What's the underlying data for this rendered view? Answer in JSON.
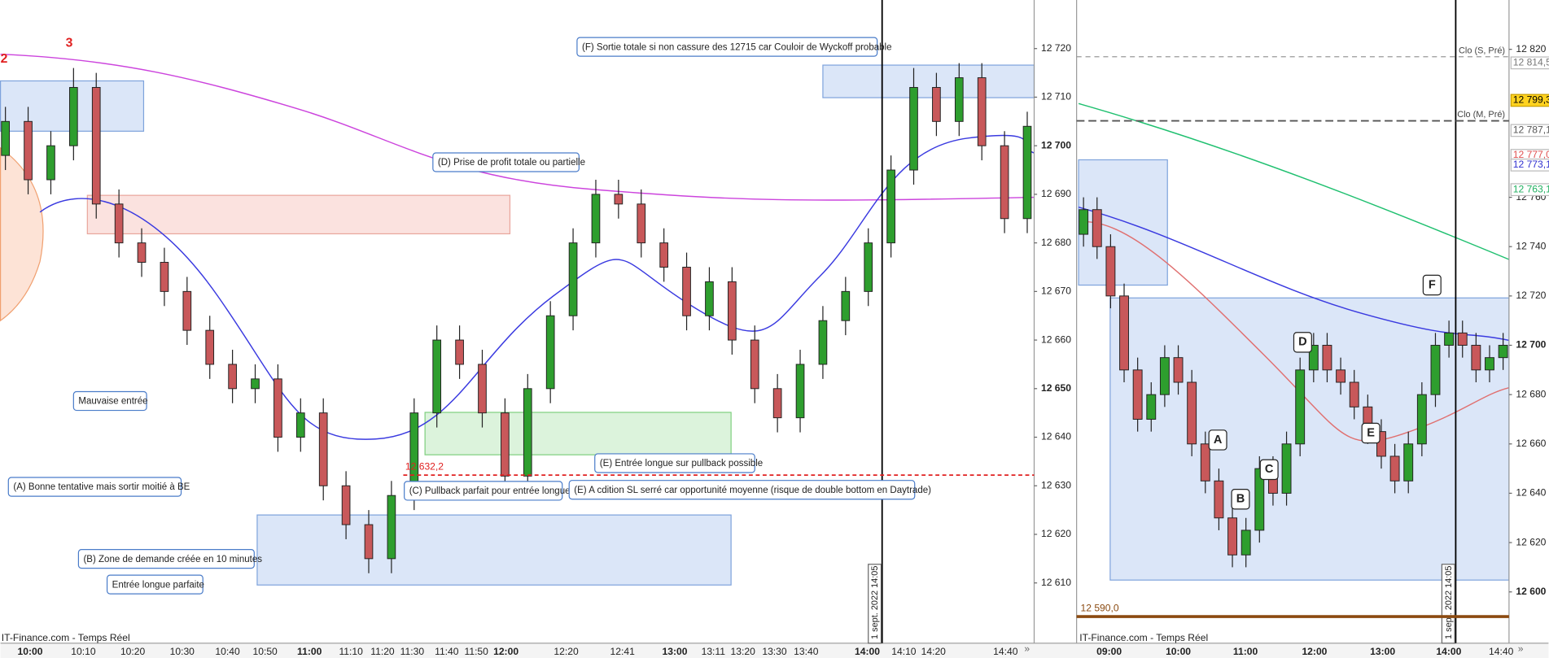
{
  "chart_data": [
    {
      "type": "candlestick",
      "open": [
        12698,
        12705,
        12693,
        12700,
        12712,
        12688,
        12680,
        12676,
        12670,
        12662,
        12655,
        12650,
        12652,
        12640,
        12645,
        12630,
        12622,
        12615,
        12628,
        12645,
        12660,
        12655,
        12645,
        12632,
        12650,
        12665,
        12680,
        12690,
        12688,
        12680,
        12675,
        12665,
        12672,
        12660,
        12650,
        12644,
        12655,
        12664,
        12670,
        12680,
        12695,
        12712,
        12705,
        12714,
        12700,
        12685
      ],
      "high": [
        12708,
        12708,
        12703,
        12716,
        12715,
        12691,
        12683,
        12679,
        12673,
        12665,
        12658,
        12655,
        12655,
        12648,
        12648,
        12633,
        12625,
        12631,
        12648,
        12663,
        12663,
        12658,
        12648,
        12653,
        12668,
        12683,
        12693,
        12693,
        12691,
        12683,
        12678,
        12675,
        12675,
        12663,
        12653,
        12658,
        12667,
        12673,
        12683,
        12698,
        12716,
        12715,
        12717,
        12717,
        12703,
        12707
      ],
      "low": [
        12695,
        12690,
        12690,
        12697,
        12685,
        12677,
        12673,
        12667,
        12659,
        12652,
        12647,
        12647,
        12637,
        12637,
        12627,
        12619,
        12612,
        12612,
        12625,
        12642,
        12652,
        12642,
        12629,
        12629,
        12647,
        12662,
        12677,
        12685,
        12677,
        12672,
        12662,
        12662,
        12657,
        12647,
        12641,
        12641,
        12652,
        12661,
        12667,
        12677,
        12692,
        12702,
        12702,
        12697,
        12682,
        12682
      ],
      "close": [
        12705,
        12693,
        12700,
        12712,
        12688,
        12680,
        12676,
        12670,
        12662,
        12655,
        12650,
        12652,
        12640,
        12645,
        12630,
        12622,
        12615,
        12628,
        12645,
        12660,
        12655,
        12645,
        12632,
        12650,
        12665,
        12680,
        12690,
        12688,
        12680,
        12675,
        12665,
        12672,
        12660,
        12650,
        12644,
        12655,
        12664,
        12670,
        12680,
        12695,
        12712,
        12705,
        12714,
        12700,
        12685,
        12704
      ],
      "up_color": "#2e9e2e",
      "down_color": "#c8585a",
      "ylim": [
        12598,
        12730
      ],
      "yticks": [
        {
          "value": 12610,
          "label": "12 610"
        },
        {
          "value": 12620,
          "label": "12 620"
        },
        {
          "value": 12630,
          "label": "12 630"
        },
        {
          "value": 12640,
          "label": "12 640"
        },
        {
          "value": 12650,
          "label": "12 650"
        },
        {
          "value": 12660,
          "label": "12 660"
        },
        {
          "value": 12670,
          "label": "12 670"
        },
        {
          "value": 12680,
          "label": "12 680"
        },
        {
          "value": 12690,
          "label": "12 690"
        },
        {
          "value": 12700,
          "label": "12 700"
        },
        {
          "value": 12710,
          "label": "12 710"
        },
        {
          "value": 12720,
          "label": "12 720"
        }
      ],
      "time_labels": [
        "10:00",
        "10:10",
        "10:20",
        "10:30",
        "10:40",
        "10:50",
        "11:00",
        "11:10",
        "11:20",
        "11:30",
        "11:40",
        "11:50",
        "12:00",
        "12:20",
        "12:41",
        "13:00",
        "13:11",
        "13:20",
        "13:30",
        "13:40",
        "14:00",
        "14:10",
        "14:20",
        "14:40"
      ],
      "annotations": [
        "(F) Sortie totale si non cassure des 12715 car Couloir de Wyckoff probable",
        "(D) Prise de profit totale ou partielle",
        "Mauvaise entrée",
        "(A) Bonne tentative mais sortir moitié à BE",
        "(C) Pullback parfait pour entrée longue",
        "(E) A cdition SL serré car opportunité moyenne (risque de double bottom en Daytrade)",
        "(E) Entrée longue sur pullback possible",
        "(B) Zone de demande créée en 10 minutes",
        "Entrée longue parfaite"
      ],
      "wave_labels": [
        "2",
        "3"
      ],
      "level": {
        "value": 12632.2,
        "label": "12 632,2",
        "color": "#e02020"
      },
      "source": "IT-Finance.com - Temps Réel",
      "marker_label": "1 sept. 2022 14:05"
    },
    {
      "type": "candlestick",
      "open": [
        12745,
        12755,
        12740,
        12720,
        12690,
        12670,
        12680,
        12695,
        12685,
        12660,
        12645,
        12630,
        12615,
        12625,
        12650,
        12640,
        12660,
        12690,
        12700,
        12690,
        12685,
        12675,
        12665,
        12655,
        12645,
        12660,
        12680,
        12700,
        12705,
        12700,
        12690,
        12695
      ],
      "high": [
        12760,
        12760,
        12745,
        12725,
        12695,
        12685,
        12700,
        12700,
        12690,
        12665,
        12650,
        12635,
        12630,
        12655,
        12655,
        12665,
        12695,
        12705,
        12705,
        12695,
        12690,
        12680,
        12670,
        12660,
        12665,
        12685,
        12705,
        12710,
        12710,
        12705,
        12700,
        12705
      ],
      "low": [
        12740,
        12735,
        12715,
        12685,
        12665,
        12665,
        12675,
        12680,
        12655,
        12640,
        12625,
        12610,
        12610,
        12620,
        12635,
        12635,
        12655,
        12685,
        12685,
        12680,
        12670,
        12660,
        12650,
        12640,
        12640,
        12655,
        12675,
        12695,
        12695,
        12685,
        12685,
        12690
      ],
      "close": [
        12755,
        12740,
        12720,
        12690,
        12670,
        12680,
        12695,
        12685,
        12660,
        12645,
        12630,
        12615,
        12625,
        12650,
        12640,
        12660,
        12690,
        12700,
        12690,
        12685,
        12675,
        12665,
        12655,
        12645,
        12660,
        12680,
        12700,
        12705,
        12700,
        12690,
        12695,
        12700
      ],
      "up_color": "#2e9e2e",
      "down_color": "#c8585a",
      "ylim": [
        12580,
        12840
      ],
      "yticks": [
        {
          "value": 12600,
          "label": "12 600"
        },
        {
          "value": 12620,
          "label": "12 620"
        },
        {
          "value": 12640,
          "label": "12 640"
        },
        {
          "value": 12660,
          "label": "12 660"
        },
        {
          "value": 12680,
          "label": "12 680"
        },
        {
          "value": 12700,
          "label": "12 700"
        },
        {
          "value": 12720,
          "label": "12 720"
        },
        {
          "value": 12740,
          "label": "12 740"
        },
        {
          "value": 12760,
          "label": "12 760"
        },
        {
          "value": 12820,
          "label": "12 820"
        }
      ],
      "time_labels": [
        "09:00",
        "10:00",
        "11:00",
        "12:00",
        "13:00",
        "14:00",
        "14:40"
      ],
      "annotations": [
        "A",
        "B",
        "C",
        "D",
        "E",
        "F"
      ],
      "reference_lines": [
        {
          "value": 12817,
          "label": "Clo (S, Pré)"
        },
        {
          "value": 12791,
          "label": "Clo (M, Pré)"
        }
      ],
      "price_tags": [
        {
          "value": 12814.5,
          "label": "12 814,5",
          "color": "#777777"
        },
        {
          "value": 12799.3,
          "label": "12 799,3",
          "color": "#000000"
        },
        {
          "value": 12787.1,
          "label": "12 787,1",
          "color": "#555555"
        },
        {
          "value": 12777.0,
          "label": "12 777,0",
          "color": "#e05050"
        },
        {
          "value": 12773.1,
          "label": "12 773,1",
          "color": "#3030d0"
        },
        {
          "value": 12763.1,
          "label": "12 763,1",
          "color": "#20b060"
        }
      ],
      "level": {
        "value": 12590.0,
        "label": "12 590,0",
        "color": "#8b4a10"
      },
      "source": "IT-Finance.com - Temps Réel",
      "marker_label": "1 sept. 2022 14:05"
    }
  ]
}
